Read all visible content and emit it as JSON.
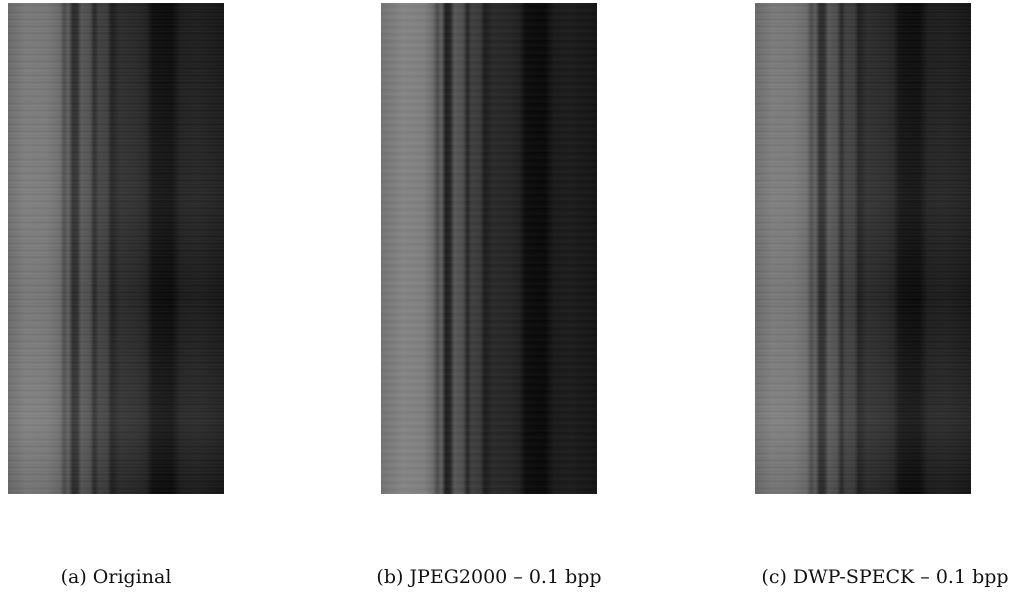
{
  "figure": {
    "panels": [
      {
        "caption": "(a) Original"
      },
      {
        "caption": "(b) JPEG2000 – 0.1 bpp"
      },
      {
        "caption": "(c) DWP-SPECK – 0.1 bpp"
      }
    ]
  }
}
